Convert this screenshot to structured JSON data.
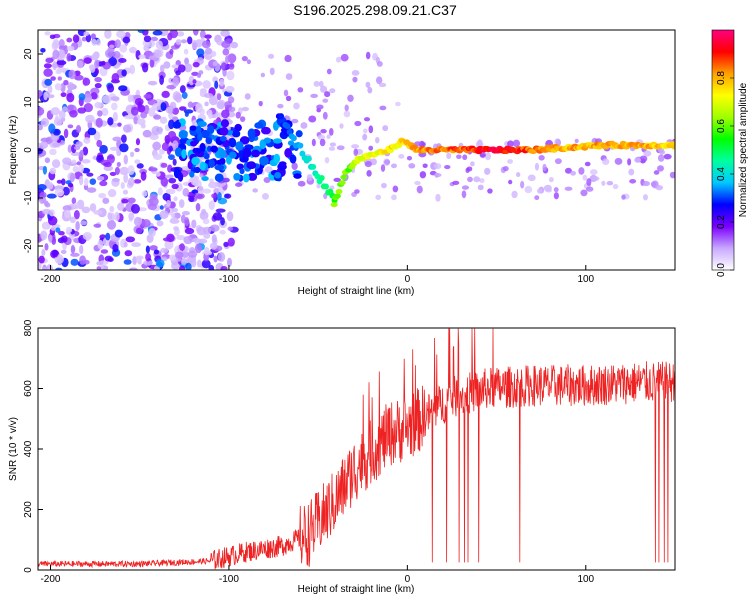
{
  "title": "S196.2025.298.09.21.C37",
  "chart_data": [
    {
      "type": "heatmap",
      "xlabel": "Height of straight line (km)",
      "ylabel": "Frequency (Hz)",
      "xlim": [
        -207,
        150
      ],
      "ylim": [
        -25,
        25
      ],
      "xticks": [
        -200,
        -100,
        0,
        100
      ],
      "yticks": [
        -20,
        -10,
        0,
        10,
        20
      ],
      "colorbar": {
        "label": "Normalized spectral amplitude",
        "ticks": [
          "0.0",
          "0.2",
          "0.4",
          "0.6",
          "0.8"
        ],
        "colors": [
          "#ffffff",
          "#c8a8ff",
          "#7a00ff",
          "#0000ff",
          "#00c8ff",
          "#00ffa0",
          "#00ff00",
          "#a0ff00",
          "#ffff00",
          "#ffa000",
          "#ff0000",
          "#ff0080"
        ]
      },
      "track": [
        {
          "x": -148,
          "f": 3,
          "a": 0.35
        },
        {
          "x": -140,
          "f": 3,
          "a": 0.3
        },
        {
          "x": -125,
          "f": 2.5,
          "a": 0.4
        },
        {
          "x": -120,
          "f": 3,
          "a": 0.3
        },
        {
          "x": -110,
          "f": -1,
          "a": 0.35
        },
        {
          "x": -100,
          "f": -2,
          "a": 0.3
        },
        {
          "x": -95,
          "f": -3,
          "a": 0.35
        },
        {
          "x": -88,
          "f": -1,
          "a": 0.3
        },
        {
          "x": -80,
          "f": -4,
          "a": 0.3
        },
        {
          "x": -70,
          "f": -3,
          "a": 0.3
        },
        {
          "x": -65,
          "f": 5,
          "a": 0.4
        },
        {
          "x": -58,
          "f": 3,
          "a": 0.45
        },
        {
          "x": -50,
          "f": 0,
          "a": 0.5
        },
        {
          "x": -45,
          "f": -3,
          "a": 0.55
        },
        {
          "x": -41,
          "f": -11,
          "a": 0.6
        },
        {
          "x": -35,
          "f": -5,
          "a": 0.6
        },
        {
          "x": -28,
          "f": -2,
          "a": 0.65
        },
        {
          "x": -20,
          "f": -1,
          "a": 0.7
        },
        {
          "x": -10,
          "f": 0,
          "a": 0.75
        },
        {
          "x": -2,
          "f": 2,
          "a": 0.75
        },
        {
          "x": 5,
          "f": 0,
          "a": 0.8
        },
        {
          "x": 15,
          "f": 0,
          "a": 0.85
        },
        {
          "x": 30,
          "f": 0,
          "a": 0.85
        },
        {
          "x": 50,
          "f": 0,
          "a": 0.95
        },
        {
          "x": 70,
          "f": 0,
          "a": 0.85
        },
        {
          "x": 90,
          "f": 0.5,
          "a": 0.8
        },
        {
          "x": 110,
          "f": 1,
          "a": 0.8
        },
        {
          "x": 130,
          "f": 1,
          "a": 0.8
        },
        {
          "x": 150,
          "f": 1,
          "a": 0.75
        }
      ]
    },
    {
      "type": "line",
      "xlabel": "Height of straight line (km)",
      "ylabel": "SNR (10 * v/v)",
      "xlim": [
        -207,
        150
      ],
      "ylim": [
        0,
        800
      ],
      "xticks": [
        -200,
        -100,
        0,
        100
      ],
      "yticks": [
        0,
        200,
        400,
        600,
        800
      ],
      "color": "#ee2222",
      "envelope": [
        {
          "x": -207,
          "y": 20
        },
        {
          "x": -150,
          "y": 20
        },
        {
          "x": -110,
          "y": 30
        },
        {
          "x": -90,
          "y": 60
        },
        {
          "x": -70,
          "y": 80
        },
        {
          "x": -55,
          "y": 120
        },
        {
          "x": -40,
          "y": 230
        },
        {
          "x": -30,
          "y": 330
        },
        {
          "x": -20,
          "y": 390
        },
        {
          "x": -10,
          "y": 450
        },
        {
          "x": 0,
          "y": 470
        },
        {
          "x": 10,
          "y": 510
        },
        {
          "x": 25,
          "y": 570
        },
        {
          "x": 45,
          "y": 600
        },
        {
          "x": 70,
          "y": 610
        },
        {
          "x": 100,
          "y": 610
        },
        {
          "x": 130,
          "y": 620
        },
        {
          "x": 150,
          "y": 620
        }
      ],
      "dropouts": [
        14,
        22,
        29,
        32,
        34,
        40,
        63,
        139,
        141,
        144,
        146
      ]
    }
  ]
}
